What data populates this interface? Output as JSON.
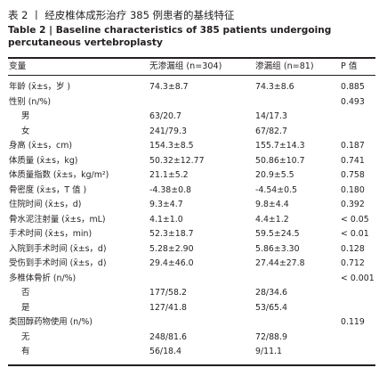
{
  "header": {
    "title": "表 2  丨  经皮椎体成形治疗 385 例患者的基线特征",
    "subtitle": "Table 2  |  Baseline characteristics of 385 patients undergoing percutaneous vertebroplasty"
  },
  "table": {
    "columns": [
      "变量",
      "无渗漏组 (n=304)",
      "渗漏组 (n=81)",
      "P 值"
    ],
    "rows": [
      {
        "label": "年龄 (x̄±s，岁 )",
        "a": "74.3±8.7",
        "b": "74.3±8.6",
        "p": "0.885"
      },
      {
        "label": "性别 (n/%)",
        "p": "0.493"
      },
      {
        "label": "男",
        "sub": true,
        "a": "63/20.7",
        "b": "14/17.3"
      },
      {
        "label": "女",
        "sub": true,
        "a": "241/79.3",
        "b": "67/82.7"
      },
      {
        "label": "身高 (x̄±s，cm)",
        "a": "154.3±8.5",
        "b": "155.7±14.3",
        "p": "0.187"
      },
      {
        "label": "体质量 (x̄±s，kg)",
        "a": "50.32±12.77",
        "b": "50.86±10.7",
        "p": "0.741"
      },
      {
        "label": "体质量指数 (x̄±s，kg/m²)",
        "a": "21.1±5.2",
        "b": "20.9±5.5",
        "p": "0.758"
      },
      {
        "label": "骨密度 (x̄±s，T 值 )",
        "a": "-4.38±0.8",
        "b": "-4.54±0.5",
        "p": "0.180"
      },
      {
        "label": "住院时间 (x̄±s，d)",
        "a": "9.3±4.7",
        "b": "9.8±4.4",
        "p": "0.392"
      },
      {
        "label": "骨水泥注射量 (x̄±s，mL)",
        "a": "4.1±1.0",
        "b": "4.4±1.2",
        "p": "< 0.05"
      },
      {
        "label": "手术时间 (x̄±s，min)",
        "a": "52.3±18.7",
        "b": "59.5±24.5",
        "p": "< 0.01"
      },
      {
        "label": "入院到手术时间 (x̄±s，d)",
        "a": "5.28±2.90",
        "b": "5.86±3.30",
        "p": "0.128"
      },
      {
        "label": "受伤到手术时间 (x̄±s，d)",
        "a": "29.4±46.0",
        "b": "27.44±27.8",
        "p": "0.712"
      },
      {
        "label": "多椎体骨折 (n/%)",
        "p": "< 0.001"
      },
      {
        "label": "否",
        "sub": true,
        "a": "177/58.2",
        "b": "28/34.6"
      },
      {
        "label": "是",
        "sub": true,
        "a": "127/41.8",
        "b": "53/65.4"
      },
      {
        "label": "类固醇药物使用 (n/%)",
        "p": "0.119"
      },
      {
        "label": "无",
        "sub": true,
        "a": "248/81.6",
        "b": "72/88.9"
      },
      {
        "label": "有",
        "sub": true,
        "a": "56/18.4",
        "b": "9/11.1"
      }
    ]
  }
}
